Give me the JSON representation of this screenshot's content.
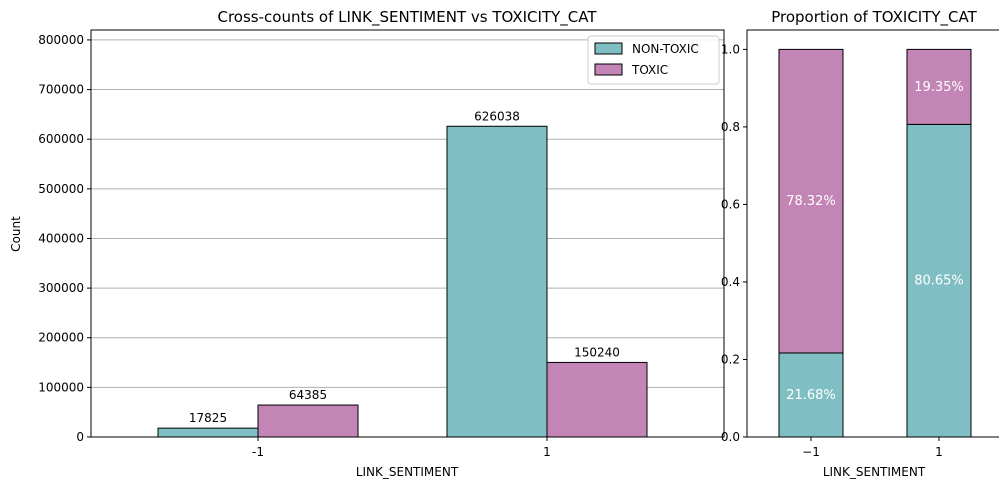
{
  "colors": {
    "nontoxic": "#7fbfc4",
    "toxic": "#c285b5",
    "grid": "#b0b0b0",
    "edge": "#000000",
    "pct_text": "#ffffff"
  },
  "chart_data": [
    {
      "type": "bar",
      "title": "Cross-counts of LINK_SENTIMENT vs TOXICITY_CAT",
      "xlabel": "LINK_SENTIMENT",
      "ylabel": "Count",
      "categories": [
        "-1",
        "1"
      ],
      "series": [
        {
          "name": "NON-TOXIC",
          "color_key": "nontoxic",
          "values": [
            17825,
            626038
          ],
          "labels": [
            "17825",
            "626038"
          ]
        },
        {
          "name": "TOXIC",
          "color_key": "toxic",
          "values": [
            64385,
            150240
          ],
          "labels": [
            "64385",
            "150240"
          ]
        }
      ],
      "ylim": [
        0,
        820000
      ],
      "yticks": [
        0,
        100000,
        200000,
        300000,
        400000,
        500000,
        600000,
        700000,
        800000
      ],
      "ytick_labels": [
        "0",
        "100000",
        "200000",
        "300000",
        "400000",
        "500000",
        "600000",
        "700000",
        "800000"
      ],
      "grid": "y",
      "legend": "top-right"
    },
    {
      "type": "bar",
      "stacked": true,
      "title": "Proportion of TOXICITY_CAT",
      "xlabel": "LINK_SENTIMENT",
      "ylabel": "",
      "categories": [
        "−1",
        "1"
      ],
      "series": [
        {
          "name": "NON-TOXIC",
          "color_key": "nontoxic",
          "values": [
            0.2168,
            0.8065
          ],
          "labels": [
            "21.68%",
            "80.65%"
          ]
        },
        {
          "name": "TOXIC",
          "color_key": "toxic",
          "values": [
            0.7832,
            0.1935
          ],
          "labels": [
            "78.32%",
            "19.35%"
          ]
        }
      ],
      "ylim": [
        0,
        1.05
      ],
      "yticks": [
        0,
        0.2,
        0.4,
        0.6,
        0.8,
        1.0
      ],
      "ytick_labels": [
        "0.0",
        "0.2",
        "0.4",
        "0.6",
        "0.8",
        "1.0"
      ],
      "grid": "none"
    }
  ]
}
